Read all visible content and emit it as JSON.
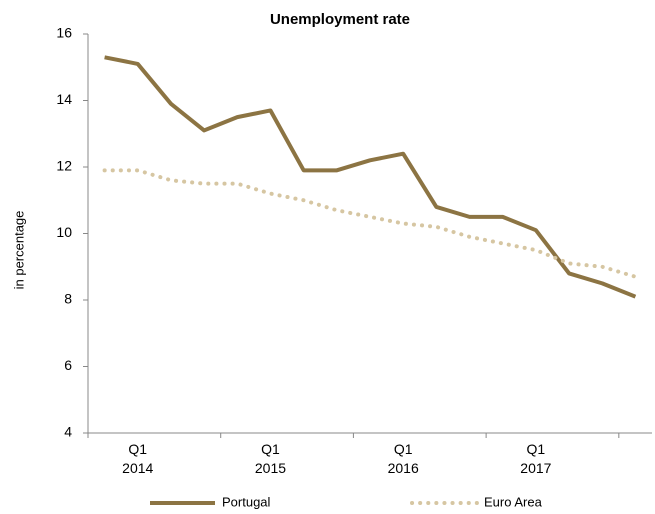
{
  "chart_data": {
    "type": "line",
    "title": "Unemployment rate",
    "y_label": "in percentage",
    "categories": [
      null,
      "Q1 2014",
      null,
      null,
      null,
      "Q1 2015",
      null,
      null,
      null,
      "Q1 2016",
      null,
      null,
      null,
      "Q1 2017",
      null,
      null,
      null
    ],
    "series": [
      {
        "name": "Portugal",
        "color": "#8c7443",
        "style": "solid",
        "values": [
          15.3,
          15.1,
          13.9,
          13.1,
          13.5,
          13.7,
          11.9,
          11.9,
          12.2,
          12.4,
          10.8,
          10.5,
          10.5,
          10.1,
          8.8,
          8.5,
          8.1
        ]
      },
      {
        "name": "Euro Area",
        "color": "#d6c6a2",
        "style": "dotted",
        "values": [
          11.9,
          11.9,
          11.6,
          11.5,
          11.5,
          11.2,
          11.0,
          10.7,
          10.5,
          10.3,
          10.2,
          9.9,
          9.7,
          9.5,
          9.1,
          9.0,
          8.7
        ]
      }
    ],
    "ylim": [
      4,
      16
    ],
    "yticks": [
      4,
      6,
      8,
      10,
      12,
      14,
      16
    ],
    "grid": false
  }
}
